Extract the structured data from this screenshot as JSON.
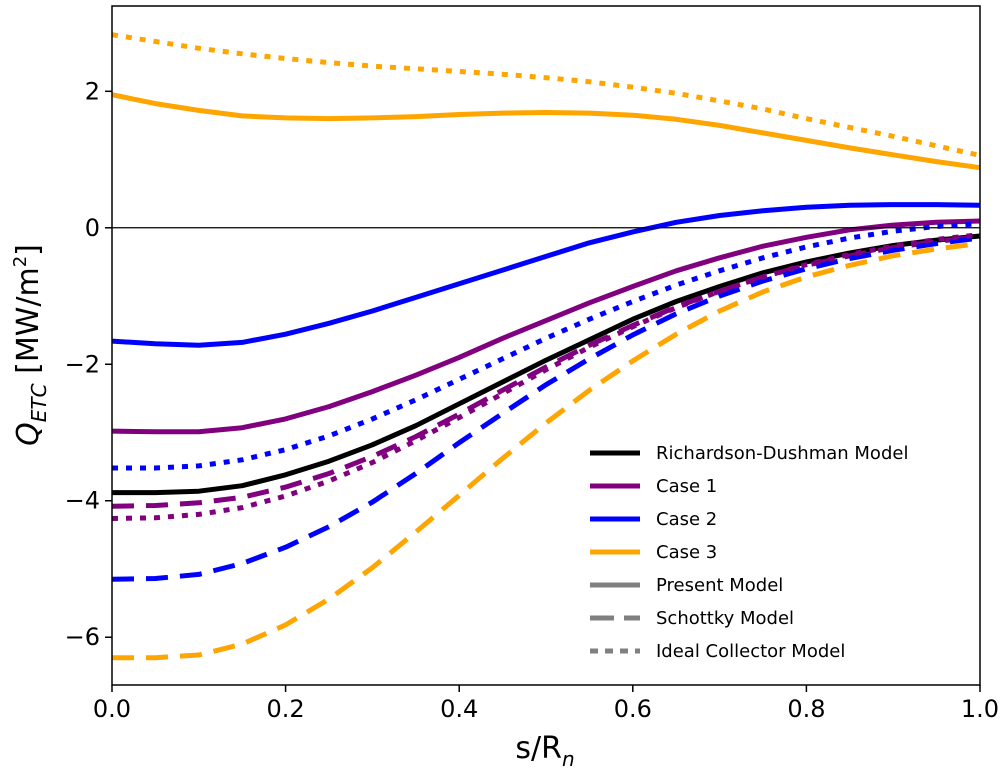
{
  "chart_data": {
    "type": "line",
    "title": "",
    "xlabel": "s/R",
    "xlabel_sub": "n",
    "ylabel": "Q",
    "ylabel_sub": "ETC",
    "ylabel_unit": " [MW/m",
    "ylabel_unit_sup": "2",
    "ylabel_unit_end": "]",
    "xlim": [
      0.0,
      1.0
    ],
    "ylim": [
      -6.7,
      3.25
    ],
    "xticks": [
      0.0,
      0.2,
      0.4,
      0.6,
      0.8,
      1.0
    ],
    "xtick_labels": [
      "0.0",
      "0.2",
      "0.4",
      "0.6",
      "0.8",
      "1.0"
    ],
    "yticks": [
      -6,
      -4,
      -2,
      0,
      2
    ],
    "ytick_labels": [
      "−6",
      "−4",
      "−2",
      "0",
      "2"
    ],
    "grid": false,
    "zero_line": true,
    "legend_position": "lower-right",
    "x": [
      0.0,
      0.05,
      0.1,
      0.15,
      0.2,
      0.25,
      0.3,
      0.35,
      0.4,
      0.45,
      0.5,
      0.55,
      0.6,
      0.65,
      0.7,
      0.75,
      0.8,
      0.85,
      0.9,
      0.95,
      1.0
    ],
    "series": [
      {
        "name": "Richardson-Dushman Model",
        "color": "#000000",
        "dash": "solid",
        "values": [
          -3.88,
          -3.88,
          -3.86,
          -3.78,
          -3.62,
          -3.42,
          -3.18,
          -2.9,
          -2.58,
          -2.26,
          -1.94,
          -1.64,
          -1.34,
          -1.08,
          -0.86,
          -0.66,
          -0.5,
          -0.37,
          -0.26,
          -0.18,
          -0.12
        ]
      },
      {
        "color": "#800080",
        "dash": "solid",
        "values": [
          -2.98,
          -2.99,
          -2.99,
          -2.93,
          -2.8,
          -2.62,
          -2.4,
          -2.16,
          -1.9,
          -1.62,
          -1.36,
          -1.1,
          -0.86,
          -0.63,
          -0.44,
          -0.27,
          -0.14,
          -0.03,
          0.04,
          0.08,
          0.1
        ]
      },
      {
        "color": "#0000ff",
        "dash": "solid",
        "values": [
          -1.66,
          -1.7,
          -1.72,
          -1.68,
          -1.56,
          -1.4,
          -1.22,
          -1.02,
          -0.82,
          -0.62,
          -0.42,
          -0.22,
          -0.06,
          0.08,
          0.18,
          0.25,
          0.3,
          0.33,
          0.34,
          0.34,
          0.33
        ]
      },
      {
        "color": "#ffa500",
        "dash": "solid",
        "values": [
          1.95,
          1.82,
          1.72,
          1.64,
          1.61,
          1.6,
          1.61,
          1.63,
          1.66,
          1.68,
          1.69,
          1.68,
          1.65,
          1.59,
          1.5,
          1.39,
          1.28,
          1.17,
          1.07,
          0.97,
          0.88
        ]
      },
      {
        "color": "#800080",
        "dash": "dashed",
        "values": [
          -4.08,
          -4.07,
          -4.03,
          -3.95,
          -3.8,
          -3.6,
          -3.35,
          -3.06,
          -2.73,
          -2.38,
          -2.04,
          -1.72,
          -1.43,
          -1.16,
          -0.93,
          -0.72,
          -0.55,
          -0.41,
          -0.29,
          -0.2,
          -0.13
        ]
      },
      {
        "color": "#0000ff",
        "dash": "dashed",
        "values": [
          -5.15,
          -5.14,
          -5.08,
          -4.92,
          -4.68,
          -4.38,
          -4.02,
          -3.6,
          -3.15,
          -2.72,
          -2.3,
          -1.92,
          -1.57,
          -1.26,
          -1.0,
          -0.78,
          -0.6,
          -0.45,
          -0.33,
          -0.23,
          -0.15
        ]
      },
      {
        "color": "#ffa500",
        "dash": "dashed",
        "values": [
          -6.3,
          -6.3,
          -6.26,
          -6.1,
          -5.82,
          -5.44,
          -4.98,
          -4.46,
          -3.92,
          -3.38,
          -2.86,
          -2.38,
          -1.95,
          -1.56,
          -1.22,
          -0.94,
          -0.72,
          -0.55,
          -0.41,
          -0.31,
          -0.23
        ]
      },
      {
        "color": "#800080",
        "dash": "dotted",
        "values": [
          -4.26,
          -4.25,
          -4.2,
          -4.1,
          -3.93,
          -3.71,
          -3.44,
          -3.12,
          -2.78,
          -2.43,
          -2.08,
          -1.75,
          -1.45,
          -1.17,
          -0.93,
          -0.72,
          -0.54,
          -0.39,
          -0.27,
          -0.17,
          -0.1
        ]
      },
      {
        "color": "#0000ff",
        "dash": "dotted",
        "values": [
          -3.52,
          -3.52,
          -3.49,
          -3.4,
          -3.25,
          -3.05,
          -2.8,
          -2.52,
          -2.22,
          -1.92,
          -1.62,
          -1.34,
          -1.08,
          -0.84,
          -0.63,
          -0.44,
          -0.28,
          -0.15,
          -0.05,
          0.02,
          0.06
        ]
      },
      {
        "color": "#ffa500",
        "dash": "dotted",
        "values": [
          2.83,
          2.73,
          2.63,
          2.55,
          2.48,
          2.42,
          2.37,
          2.33,
          2.29,
          2.25,
          2.2,
          2.14,
          2.06,
          1.97,
          1.86,
          1.74,
          1.6,
          1.47,
          1.34,
          1.2,
          1.06
        ]
      }
    ],
    "legend": [
      {
        "label": "Richardson-Dushman Model",
        "color": "#000000",
        "dash": "solid"
      },
      {
        "label": "Case 1",
        "color": "#800080",
        "dash": "solid"
      },
      {
        "label": "Case 2",
        "color": "#0000ff",
        "dash": "solid"
      },
      {
        "label": "Case 3",
        "color": "#ffa500",
        "dash": "solid"
      },
      {
        "label": "Present Model",
        "color": "#808080",
        "dash": "solid"
      },
      {
        "label": "Schottky Model",
        "color": "#808080",
        "dash": "dashed"
      },
      {
        "label": "Ideal Collector Model",
        "color": "#808080",
        "dash": "dotted"
      }
    ]
  }
}
